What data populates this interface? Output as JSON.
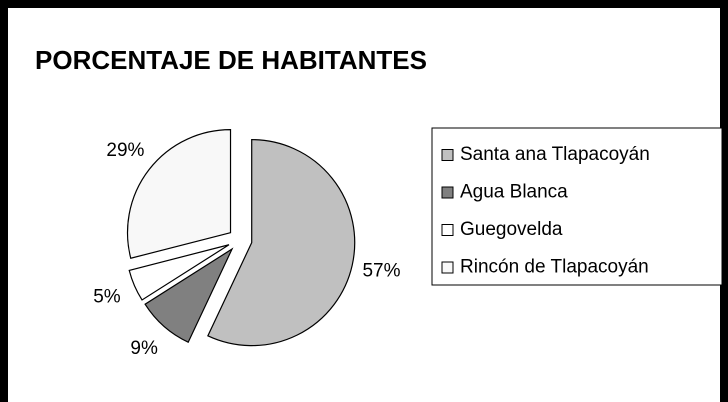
{
  "chart_data": {
    "type": "pie",
    "title": "PORCENTAJE DE HABITANTES",
    "categories": [
      "Santa ana Tlapacoyán",
      "Agua Blanca",
      "Guegovelda",
      "Rincón de Tlapacoyán"
    ],
    "values": [
      57,
      9,
      5,
      29
    ],
    "value_labels": [
      "57%",
      "9%",
      "5%",
      "29%"
    ],
    "colors": [
      "#c0c0c0",
      "#808080",
      "#ffffff",
      "#f8f8f8"
    ],
    "legend": "right"
  }
}
